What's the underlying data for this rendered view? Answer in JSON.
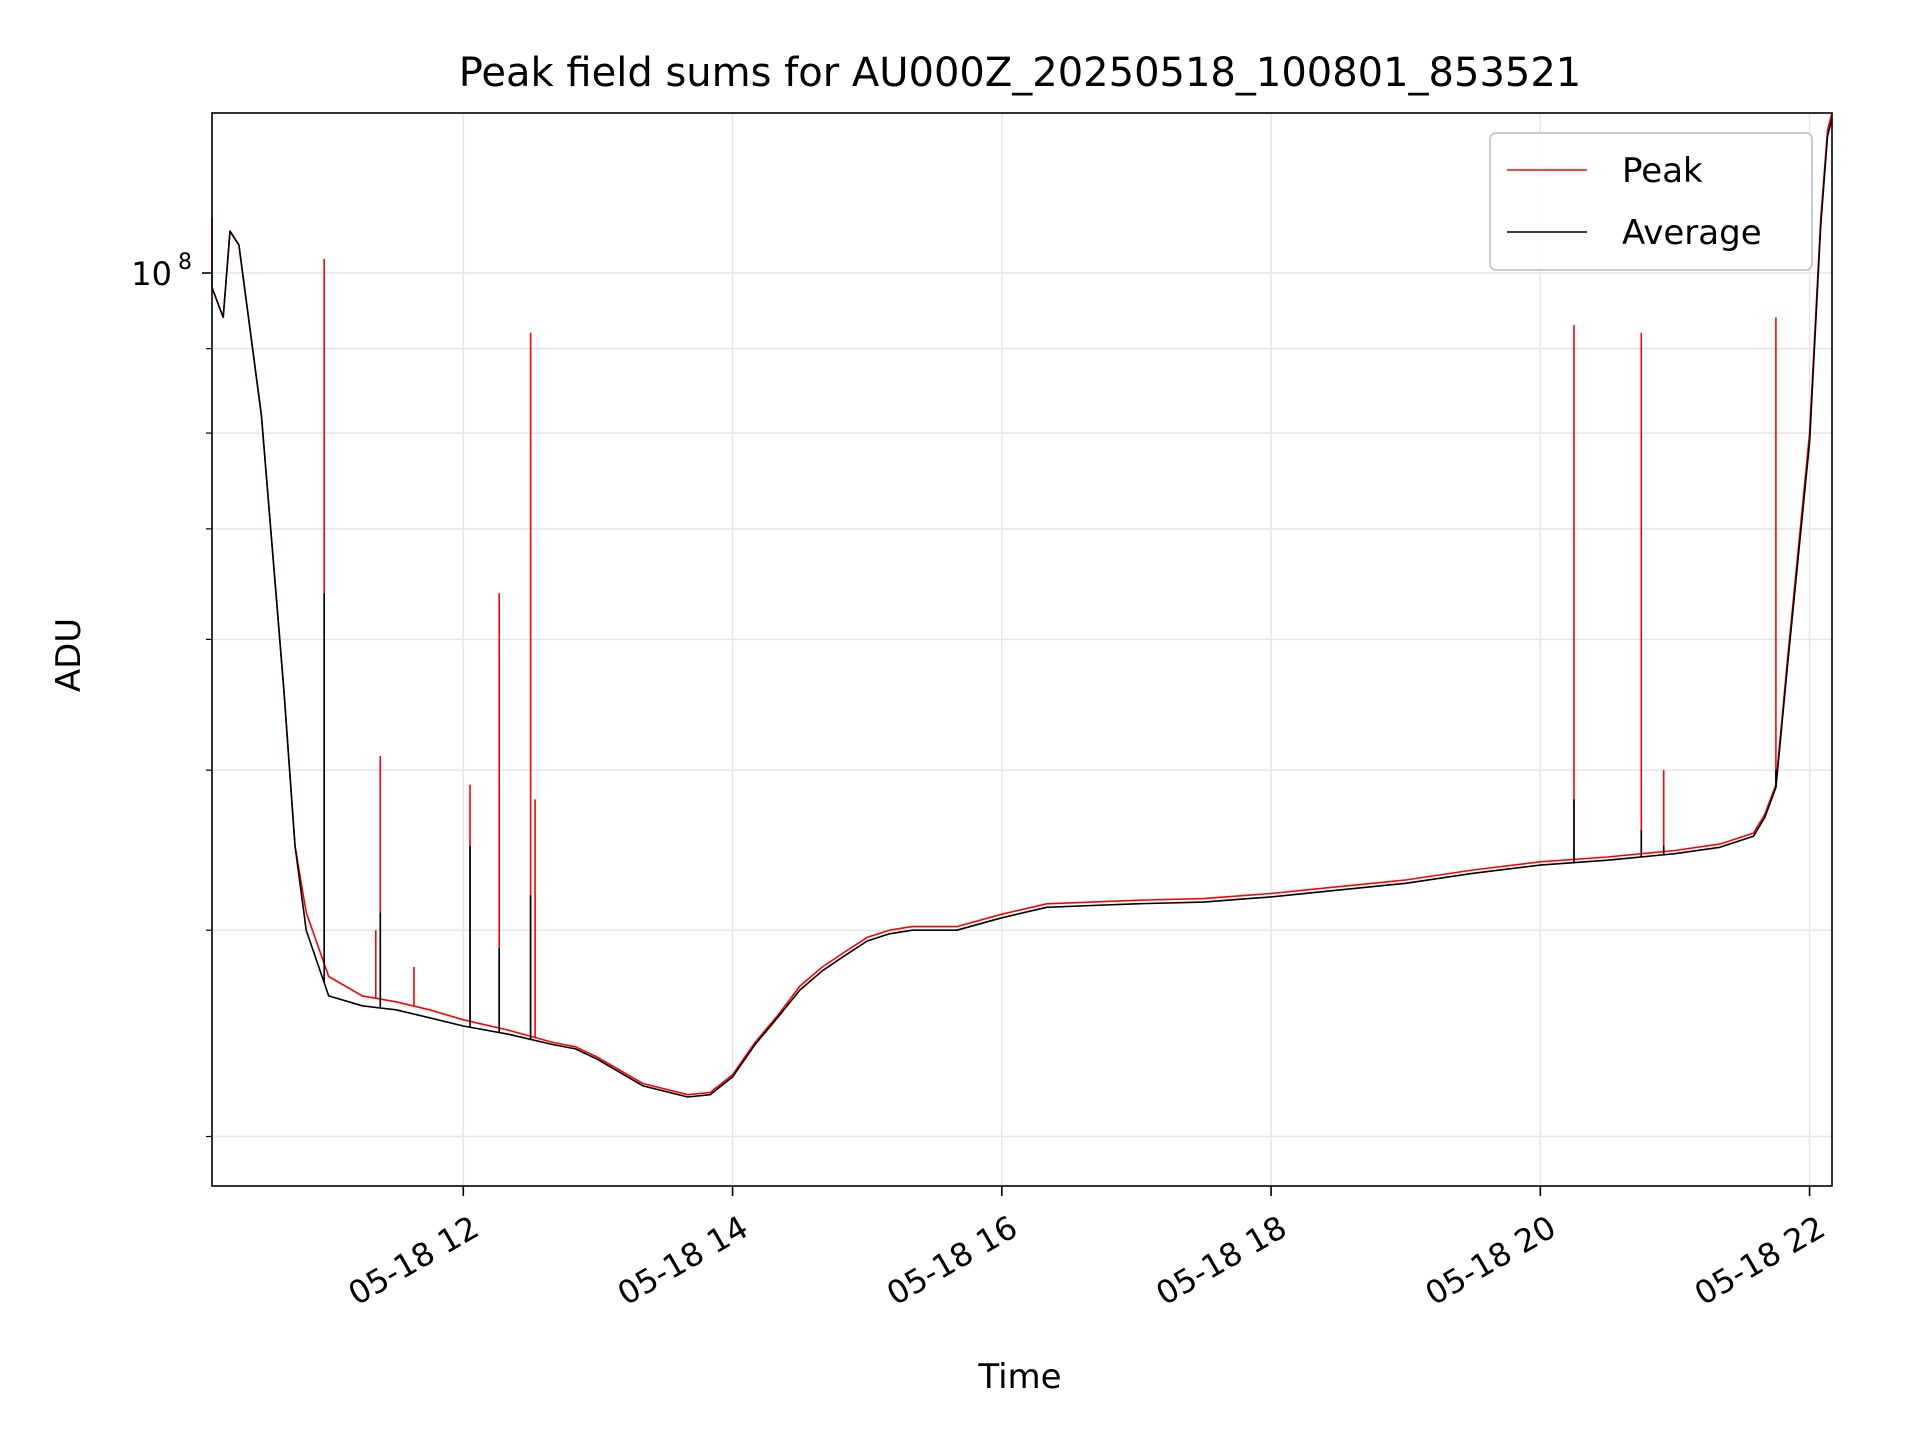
{
  "chart_data": {
    "type": "line",
    "title": "Peak field sums for AU000Z_20250518_100801_853521",
    "xlabel": "Time",
    "ylabel": "ADU",
    "yscale": "log",
    "xlim": [
      "05-18 10:08",
      "05-18 22:10"
    ],
    "ylim": [
      28000000,
      125000000
    ],
    "grid": true,
    "legend_position": "upper right",
    "x_ticks": [
      {
        "value": "05-18 12:00",
        "label": "05-18 12"
      },
      {
        "value": "05-18 14:00",
        "label": "05-18 14"
      },
      {
        "value": "05-18 16:00",
        "label": "05-18 16"
      },
      {
        "value": "05-18 18:00",
        "label": "05-18 18"
      },
      {
        "value": "05-18 20:00",
        "label": "05-18 20"
      },
      {
        "value": "05-18 22:00",
        "label": "05-18 22"
      }
    ],
    "y_major_ticks": [
      {
        "value": 100000000,
        "label_base": "10",
        "label_exp": "8"
      }
    ],
    "y_minor_ticks": [
      30000000,
      40000000,
      50000000,
      60000000,
      70000000,
      80000000,
      90000000
    ],
    "series": [
      {
        "name": "Peak",
        "color": "#ff0000",
        "points": [
          [
            "05-18 10:08",
            98000000
          ],
          [
            "05-18 10:13",
            94000000
          ],
          [
            "05-18 10:16",
            106000000
          ],
          [
            "05-18 10:20",
            104000000
          ],
          [
            "05-18 10:30",
            82000000
          ],
          [
            "05-18 10:40",
            56000000
          ],
          [
            "05-18 10:45",
            45000000
          ],
          [
            "05-18 10:50",
            41000000
          ],
          [
            "05-18 11:00",
            37500000
          ],
          [
            "05-18 11:15",
            36500000
          ],
          [
            "05-18 11:30",
            36200000
          ],
          [
            "05-18 11:45",
            35800000
          ],
          [
            "05-18 12:00",
            35300000
          ],
          [
            "05-18 12:20",
            34800000
          ],
          [
            "05-18 12:40",
            34200000
          ],
          [
            "05-18 12:50",
            34000000
          ],
          [
            "05-18 13:00",
            33500000
          ],
          [
            "05-18 13:20",
            32300000
          ],
          [
            "05-18 13:40",
            31800000
          ],
          [
            "05-18 13:50",
            31900000
          ],
          [
            "05-18 14:00",
            32700000
          ],
          [
            "05-18 14:10",
            34200000
          ],
          [
            "05-18 14:20",
            35500000
          ],
          [
            "05-18 14:30",
            37000000
          ],
          [
            "05-18 14:40",
            38000000
          ],
          [
            "05-18 14:50",
            38800000
          ],
          [
            "05-18 15:00",
            39600000
          ],
          [
            "05-18 15:10",
            40000000
          ],
          [
            "05-18 15:20",
            40200000
          ],
          [
            "05-18 15:40",
            40200000
          ],
          [
            "05-18 16:00",
            40900000
          ],
          [
            "05-18 16:20",
            41500000
          ],
          [
            "05-18 16:40",
            41600000
          ],
          [
            "05-18 17:00",
            41700000
          ],
          [
            "05-18 17:30",
            41800000
          ],
          [
            "05-18 17:50",
            42000000
          ],
          [
            "05-18 18:00",
            42100000
          ],
          [
            "05-18 18:30",
            42500000
          ],
          [
            "05-18 19:00",
            42900000
          ],
          [
            "05-18 19:30",
            43500000
          ],
          [
            "05-18 20:00",
            44000000
          ],
          [
            "05-18 20:30",
            44300000
          ],
          [
            "05-18 21:00",
            44700000
          ],
          [
            "05-18 21:20",
            45100000
          ],
          [
            "05-18 21:35",
            45800000
          ],
          [
            "05-18 21:40",
            47000000
          ],
          [
            "05-18 21:45",
            49000000
          ],
          [
            "05-18 21:50",
            58000000
          ],
          [
            "05-18 22:00",
            80000000
          ],
          [
            "05-18 22:05",
            108000000
          ],
          [
            "05-18 22:08",
            122000000
          ],
          [
            "05-18 22:10",
            125000000
          ]
        ],
        "spikes": [
          [
            "05-18 10:08",
            108000000
          ],
          [
            "05-18 10:58",
            102000000
          ],
          [
            "05-18 11:23",
            51000000
          ],
          [
            "05-18 11:21",
            40000000
          ],
          [
            "05-18 11:38",
            38000000
          ],
          [
            "05-18 12:03",
            49000000
          ],
          [
            "05-18 12:16",
            64000000
          ],
          [
            "05-18 12:30",
            92000000
          ],
          [
            "05-18 12:32",
            48000000
          ],
          [
            "05-18 20:15",
            93000000
          ],
          [
            "05-18 20:45",
            92000000
          ],
          [
            "05-18 20:55",
            50000000
          ],
          [
            "05-18 21:45",
            94000000
          ]
        ]
      },
      {
        "name": "Average",
        "color": "#000000",
        "points": [
          [
            "05-18 10:08",
            98000000
          ],
          [
            "05-18 10:13",
            94000000
          ],
          [
            "05-18 10:16",
            106000000
          ],
          [
            "05-18 10:20",
            104000000
          ],
          [
            "05-18 10:30",
            82000000
          ],
          [
            "05-18 10:40",
            56000000
          ],
          [
            "05-18 10:45",
            45000000
          ],
          [
            "05-18 10:50",
            40000000
          ],
          [
            "05-18 11:00",
            36500000
          ],
          [
            "05-18 11:15",
            36000000
          ],
          [
            "05-18 11:30",
            35800000
          ],
          [
            "05-18 11:45",
            35400000
          ],
          [
            "05-18 12:00",
            35000000
          ],
          [
            "05-18 12:20",
            34600000
          ],
          [
            "05-18 12:40",
            34100000
          ],
          [
            "05-18 12:50",
            33900000
          ],
          [
            "05-18 13:00",
            33400000
          ],
          [
            "05-18 13:20",
            32200000
          ],
          [
            "05-18 13:40",
            31700000
          ],
          [
            "05-18 13:50",
            31800000
          ],
          [
            "05-18 14:00",
            32600000
          ],
          [
            "05-18 14:10",
            34100000
          ],
          [
            "05-18 14:20",
            35400000
          ],
          [
            "05-18 14:30",
            36800000
          ],
          [
            "05-18 14:40",
            37800000
          ],
          [
            "05-18 14:50",
            38600000
          ],
          [
            "05-18 15:00",
            39400000
          ],
          [
            "05-18 15:10",
            39800000
          ],
          [
            "05-18 15:20",
            40000000
          ],
          [
            "05-18 15:40",
            40000000
          ],
          [
            "05-18 16:00",
            40700000
          ],
          [
            "05-18 16:20",
            41300000
          ],
          [
            "05-18 16:40",
            41400000
          ],
          [
            "05-18 17:00",
            41500000
          ],
          [
            "05-18 17:30",
            41600000
          ],
          [
            "05-18 17:50",
            41800000
          ],
          [
            "05-18 18:00",
            41900000
          ],
          [
            "05-18 18:30",
            42300000
          ],
          [
            "05-18 19:00",
            42700000
          ],
          [
            "05-18 19:30",
            43300000
          ],
          [
            "05-18 20:00",
            43800000
          ],
          [
            "05-18 20:30",
            44100000
          ],
          [
            "05-18 21:00",
            44500000
          ],
          [
            "05-18 21:20",
            44900000
          ],
          [
            "05-18 21:35",
            45600000
          ],
          [
            "05-18 21:40",
            46800000
          ],
          [
            "05-18 21:45",
            48800000
          ],
          [
            "05-18 21:50",
            57500000
          ],
          [
            "05-18 22:00",
            79000000
          ],
          [
            "05-18 22:05",
            107000000
          ],
          [
            "05-18 22:08",
            121000000
          ],
          [
            "05-18 22:10",
            124000000
          ]
        ],
        "spikes": [
          [
            "05-18 10:58",
            64000000
          ],
          [
            "05-18 11:23",
            41000000
          ],
          [
            "05-18 12:03",
            45000000
          ],
          [
            "05-18 12:16",
            39000000
          ],
          [
            "05-18 12:30",
            42000000
          ],
          [
            "05-18 20:15",
            48000000
          ],
          [
            "05-18 20:45",
            46000000
          ],
          [
            "05-18 20:55",
            45000000
          ],
          [
            "05-18 21:45",
            50000000
          ]
        ]
      }
    ]
  }
}
